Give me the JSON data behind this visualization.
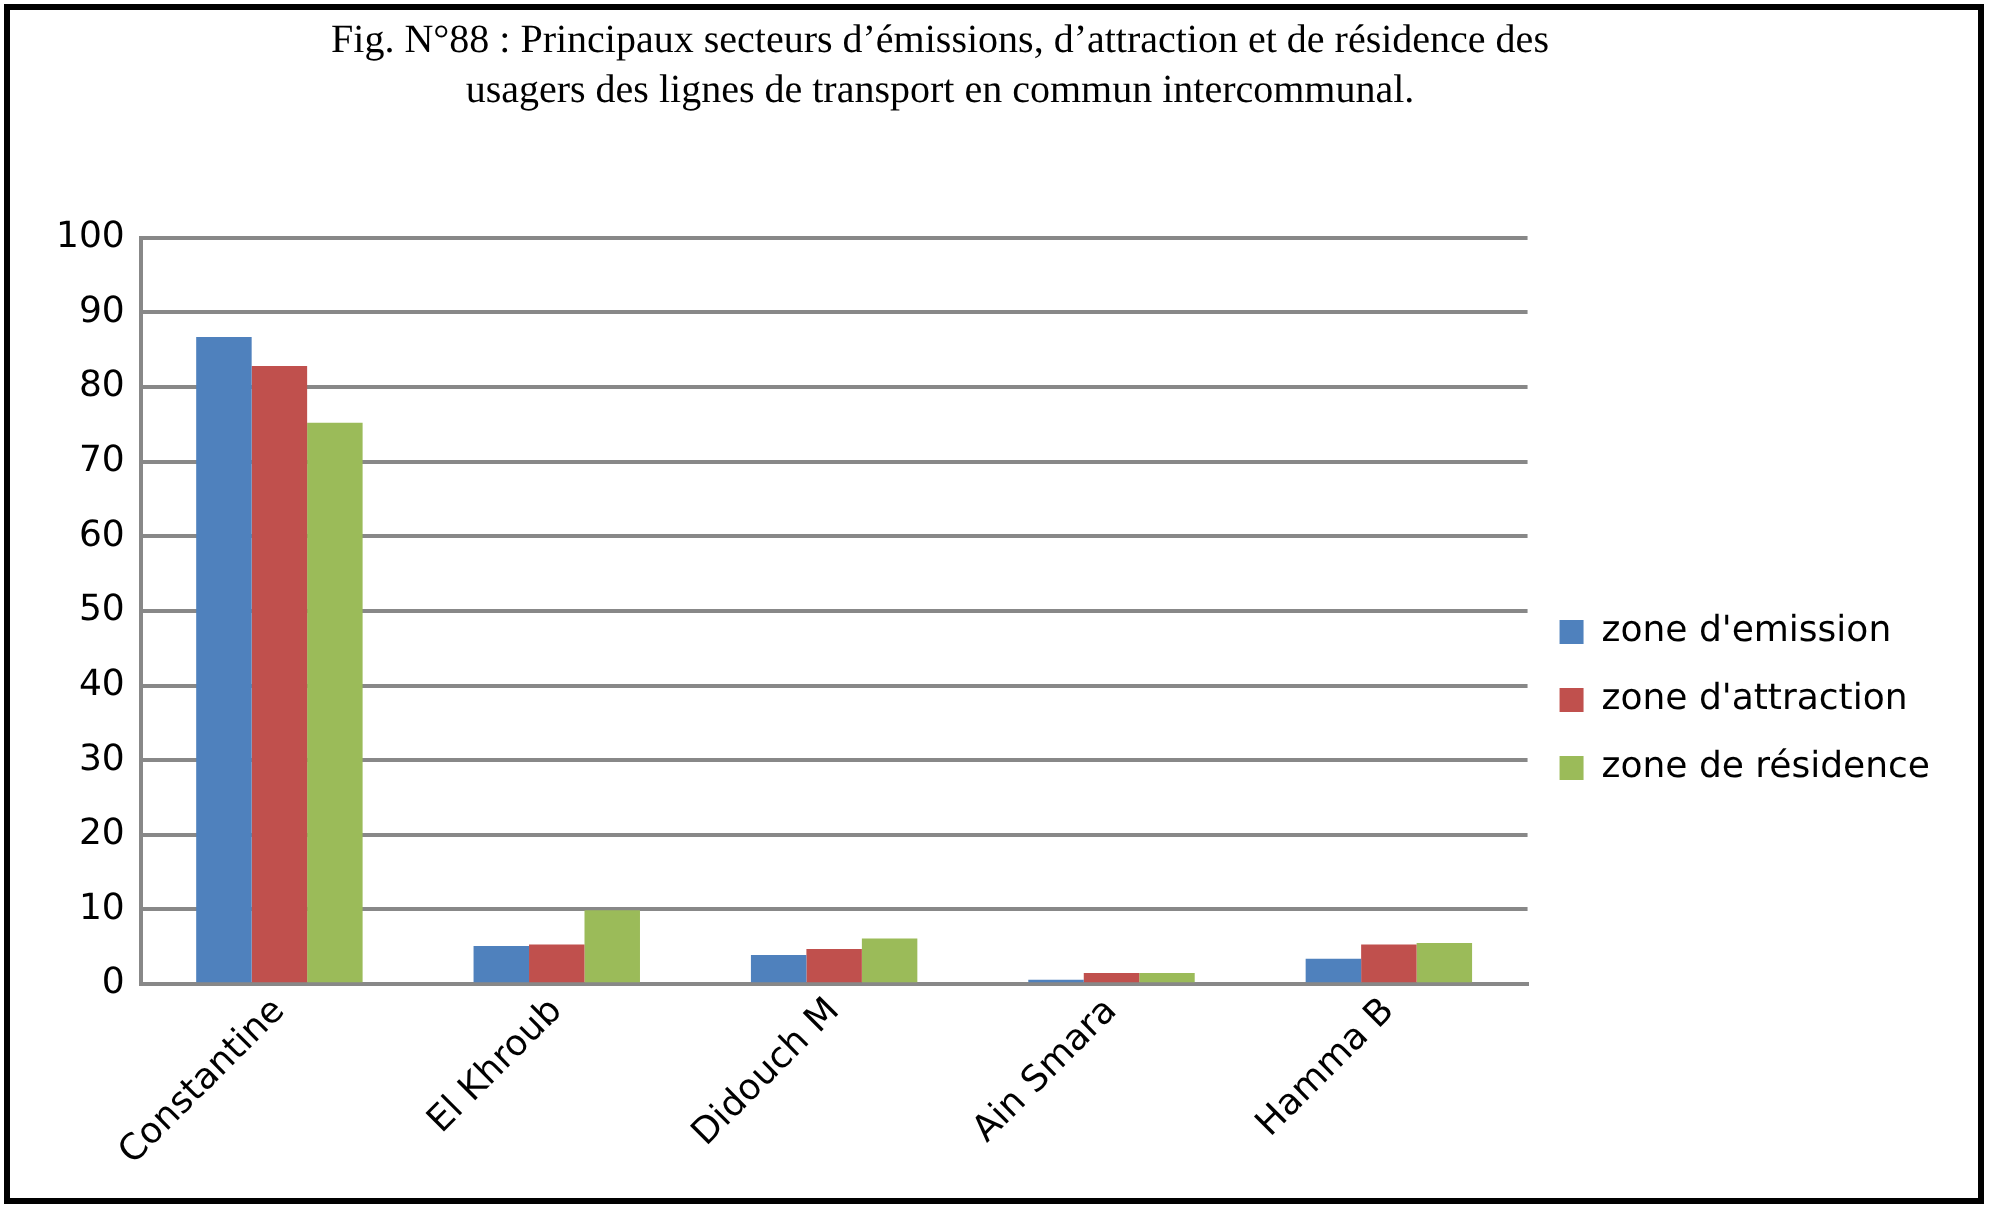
{
  "chart_data": {
    "type": "bar",
    "title": "Fig. N°88 : Principaux secteurs d’émissions, d’attraction et de résidence des usagers des lignes de transport en commun  intercommunal.",
    "categories": [
      "Constantine",
      "El Khroub",
      "Didouch M",
      "Ain Smara",
      "Hamma B"
    ],
    "series": [
      {
        "name": "zone d'emission",
        "color": "#4f81bd",
        "values": [
          86.7,
          5.1,
          3.9,
          0.6,
          3.4
        ]
      },
      {
        "name": "zone d'attraction",
        "color": "#c0504d",
        "values": [
          82.8,
          5.3,
          4.7,
          1.5,
          5.3
        ]
      },
      {
        "name": "zone de résidence",
        "color": "#9bbb59",
        "values": [
          75.2,
          9.9,
          6.1,
          1.5,
          5.5
        ]
      }
    ],
    "ylim": [
      0,
      100
    ],
    "yticks": [
      0,
      10,
      20,
      30,
      40,
      50,
      60,
      70,
      80,
      90,
      100
    ],
    "grid": "y",
    "legend": "right"
  }
}
